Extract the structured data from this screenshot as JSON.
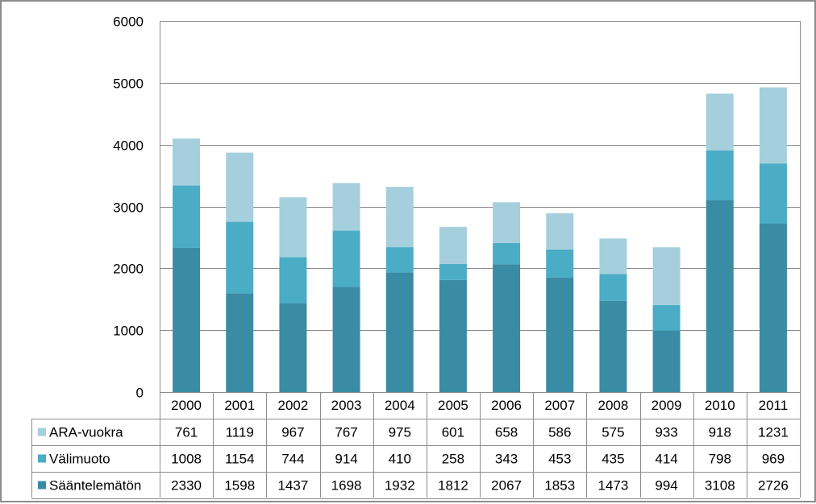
{
  "chart_data": {
    "type": "bar",
    "stacked": true,
    "categories": [
      "2000",
      "2001",
      "2002",
      "2003",
      "2004",
      "2005",
      "2006",
      "2007",
      "2008",
      "2009",
      "2010",
      "2011"
    ],
    "series": [
      {
        "name": "Sääntelemätön",
        "color": "#3a8ba4",
        "values": [
          2330,
          1598,
          1437,
          1698,
          1932,
          1812,
          2067,
          1853,
          1473,
          994,
          3108,
          2726
        ]
      },
      {
        "name": "Välimuoto",
        "color": "#4bacc6",
        "values": [
          1008,
          1154,
          744,
          914,
          410,
          258,
          343,
          453,
          435,
          414,
          798,
          969
        ]
      },
      {
        "name": "ARA-vuokra",
        "color": "#a5cfdc",
        "values": [
          761,
          1119,
          967,
          767,
          975,
          601,
          658,
          586,
          575,
          933,
          918,
          1231
        ]
      }
    ],
    "table_row_order": [
      "ARA-vuokra",
      "Välimuoto",
      "Sääntelemätön"
    ],
    "y_ticks": [
      "0",
      "1000",
      "2000",
      "3000",
      "4000",
      "5000",
      "6000"
    ],
    "ylim": [
      0,
      6000
    ],
    "grid": true,
    "legend": "data-table-below"
  }
}
